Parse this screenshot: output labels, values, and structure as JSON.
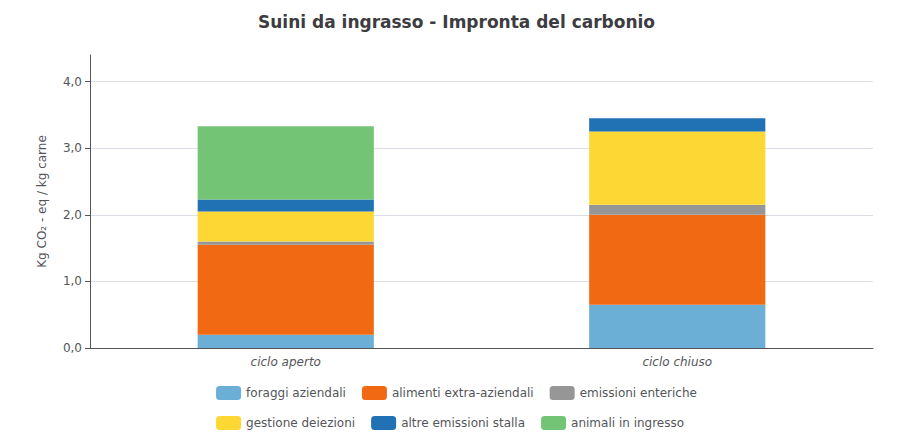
{
  "chart_data": {
    "type": "bar",
    "stacked": true,
    "title": "Suini da ingrasso - Impronta del carbonio",
    "ylabel": "Kg CO₂ - eq / kg carne",
    "categories": [
      "ciclo aperto",
      "ciclo chiuso"
    ],
    "series": [
      {
        "name": "foraggi aziendali",
        "color": "#6baed6",
        "values": [
          0.2,
          0.65
        ]
      },
      {
        "name": "alimenti extra-aziendali",
        "color": "#f16913",
        "values": [
          1.35,
          1.35
        ]
      },
      {
        "name": "emissioni enteriche",
        "color": "#969696",
        "values": [
          0.05,
          0.15
        ]
      },
      {
        "name": "gestione deiezioni",
        "color": "#fdd835",
        "values": [
          0.45,
          1.1
        ]
      },
      {
        "name": "altre emissioni stalla",
        "color": "#2171b5",
        "values": [
          0.18,
          0.2
        ]
      },
      {
        "name": "animali in ingresso",
        "color": "#74c476",
        "values": [
          1.1,
          0.0
        ]
      }
    ],
    "ylim": [
      0,
      4.4
    ],
    "yticks": [
      {
        "value": 0.0,
        "label": "0,0"
      },
      {
        "value": 1.0,
        "label": "1,0"
      },
      {
        "value": 2.0,
        "label": "2,0"
      },
      {
        "value": 3.0,
        "label": "3,0"
      },
      {
        "value": 4.0,
        "label": "4,0"
      }
    ],
    "grid": true,
    "legend": "bottom"
  }
}
